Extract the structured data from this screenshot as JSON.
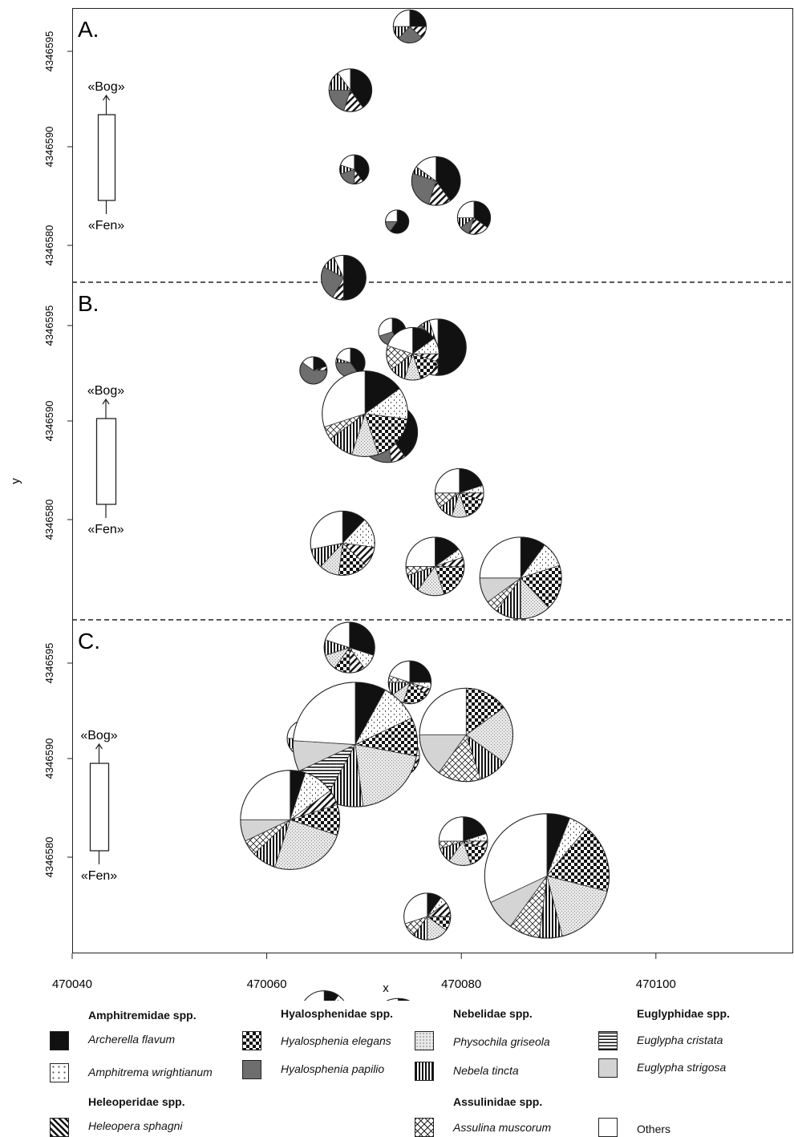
{
  "chart_data": {
    "type": "pie",
    "xlabel": "x",
    "ylabel": "y",
    "x_ticks": [
      "470040",
      "470060",
      "470080",
      "470100"
    ],
    "y_ticks": [
      "4346580",
      "4346590",
      "4346595"
    ],
    "xlim": [
      470040,
      470115
    ],
    "gradient": {
      "top": "«Bog»",
      "bottom": "«Fen»"
    },
    "categories": [
      "Archerella flavum",
      "Amphitrema wrightianum",
      "Heleopera sphagni",
      "Hyalosphenia elegans",
      "Hyalosphenia papilio",
      "Physochila griseola",
      "Nebela tincta",
      "Assulina muscorum",
      "Euglypha cristata",
      "Euglypha strigosa",
      "Others"
    ],
    "panels": [
      {
        "label": "A.",
        "pies": [
          {
            "cx": 470074.7,
            "cy": 4346598.5,
            "r": 1.7,
            "values": [
              25,
              0,
              12,
              0,
              25,
              0,
              13,
              0,
              0,
              0,
              25
            ]
          },
          {
            "cx": 470068.6,
            "cy": 4346595.2,
            "r": 2.2,
            "values": [
              40,
              0,
              15,
              0,
              20,
              0,
              15,
              0,
              0,
              0,
              10
            ]
          },
          {
            "cx": 470069.0,
            "cy": 4346591.1,
            "r": 1.5,
            "values": [
              40,
              0,
              10,
              0,
              20,
              0,
              10,
              0,
              0,
              0,
              20
            ]
          },
          {
            "cx": 470077.4,
            "cy": 4346590.5,
            "r": 2.5,
            "values": [
              40,
              0,
              15,
              0,
              25,
              0,
              5,
              0,
              0,
              0,
              15
            ]
          },
          {
            "cx": 470081.3,
            "cy": 4346588.6,
            "r": 1.7,
            "values": [
              35,
              0,
              20,
              0,
              10,
              0,
              10,
              0,
              0,
              0,
              25
            ]
          },
          {
            "cx": 470073.4,
            "cy": 4346588.4,
            "r": 1.2,
            "values": [
              60,
              0,
              0,
              0,
              15,
              0,
              0,
              0,
              0,
              0,
              25
            ]
          },
          {
            "cx": 470067.9,
            "cy": 4346585.5,
            "r": 2.3,
            "values": [
              50,
              0,
              8,
              0,
              25,
              0,
              10,
              0,
              0,
              0,
              7
            ]
          },
          {
            "cx": 470072.9,
            "cy": 4346582.7,
            "r": 1.4,
            "values": [
              40,
              0,
              0,
              0,
              30,
              0,
              0,
              0,
              0,
              0,
              30
            ]
          },
          {
            "cx": 470077.6,
            "cy": 4346581.9,
            "r": 2.9,
            "values": [
              50,
              0,
              10,
              0,
              30,
              0,
              5,
              0,
              0,
              0,
              5
            ]
          },
          {
            "cx": 470068.6,
            "cy": 4346581.1,
            "r": 1.5,
            "values": [
              40,
              0,
              0,
              0,
              35,
              0,
              5,
              0,
              0,
              0,
              20
            ]
          },
          {
            "cx": 470064.8,
            "cy": 4346580.7,
            "r": 1.4,
            "values": [
              20,
              0,
              5,
              0,
              60,
              0,
              0,
              0,
              0,
              0,
              15
            ]
          },
          {
            "cx": 470072.4,
            "cy": 4346577.5,
            "r": 3.1,
            "values": [
              40,
              0,
              8,
              0,
              45,
              0,
              0,
              0,
              0,
              0,
              7
            ]
          }
        ]
      },
      {
        "label": "B.",
        "pies": [
          {
            "cx": 470075.0,
            "cy": 4346595.8,
            "r": 2.7,
            "values": [
              15,
              10,
              5,
              15,
              0,
              10,
              10,
              15,
              0,
              0,
              20
            ]
          },
          {
            "cx": 470070.1,
            "cy": 4346592.7,
            "r": 4.4,
            "values": [
              15,
              12,
              0,
              18,
              0,
              10,
              10,
              5,
              0,
              0,
              30
            ]
          },
          {
            "cx": 470079.8,
            "cy": 4346588.6,
            "r": 2.5,
            "values": [
              20,
              5,
              5,
              15,
              0,
              10,
              10,
              10,
              0,
              0,
              25
            ]
          },
          {
            "cx": 470067.8,
            "cy": 4346586.0,
            "r": 3.3,
            "values": [
              12,
              15,
              10,
              15,
              0,
              10,
              10,
              0,
              0,
              0,
              28
            ]
          },
          {
            "cx": 470077.3,
            "cy": 4346584.8,
            "r": 3.0,
            "values": [
              15,
              5,
              5,
              20,
              0,
              15,
              10,
              5,
              0,
              0,
              25
            ]
          },
          {
            "cx": 470086.1,
            "cy": 4346584.2,
            "r": 4.2,
            "values": [
              10,
              10,
              0,
              18,
              0,
              12,
              10,
              5,
              0,
              10,
              25
            ]
          },
          {
            "cx": 470068.5,
            "cy": 4346580.6,
            "r": 2.6,
            "values": [
              30,
              10,
              10,
              10,
              0,
              10,
              10,
              0,
              0,
              0,
              20
            ]
          },
          {
            "cx": 470074.7,
            "cy": 4346578.8,
            "r": 2.2,
            "values": [
              25,
              5,
              5,
              20,
              0,
              10,
              10,
              5,
              0,
              0,
              20
            ]
          },
          {
            "cx": 470068.8,
            "cy": 4346576.9,
            "r": 2.1,
            "values": [
              20,
              5,
              5,
              25,
              0,
              10,
              10,
              0,
              0,
              0,
              25
            ]
          },
          {
            "cx": 470064.0,
            "cy": 4346575.9,
            "r": 1.9,
            "values": [
              20,
              5,
              5,
              20,
              0,
              15,
              10,
              0,
              0,
              0,
              25
            ]
          },
          {
            "cx": 470079.2,
            "cy": 4346576.7,
            "r": 2.0,
            "values": [
              20,
              5,
              5,
              20,
              0,
              15,
              10,
              0,
              0,
              0,
              25
            ]
          },
          {
            "cx": 470073.5,
            "cy": 4346575.0,
            "r": 2.2,
            "values": [
              20,
              5,
              5,
              25,
              0,
              15,
              10,
              0,
              0,
              0,
              20
            ]
          }
        ]
      },
      {
        "label": "C.",
        "pies": [
          {
            "cx": 470069.1,
            "cy": 4346593.1,
            "r": 6.4,
            "values": [
              8,
              10,
              0,
              10,
              0,
              20,
              10,
              0,
              10,
              8,
              24
            ]
          },
          {
            "cx": 470080.5,
            "cy": 4346593.6,
            "r": 4.8,
            "values": [
              0,
              0,
              0,
              15,
              0,
              20,
              10,
              15,
              0,
              15,
              25
            ]
          },
          {
            "cx": 470062.4,
            "cy": 4346589.2,
            "r": 5.1,
            "values": [
              5,
              10,
              5,
              10,
              0,
              25,
              8,
              5,
              0,
              7,
              25
            ]
          },
          {
            "cx": 470080.2,
            "cy": 4346588.1,
            "r": 2.5,
            "values": [
              20,
              5,
              5,
              15,
              0,
              15,
              10,
              5,
              0,
              0,
              25
            ]
          },
          {
            "cx": 470088.8,
            "cy": 4346586.3,
            "r": 6.4,
            "values": [
              6,
              5,
              0,
              18,
              0,
              17,
              6,
              8,
              0,
              8,
              32
            ]
          },
          {
            "cx": 470076.5,
            "cy": 4346584.2,
            "r": 2.4,
            "values": [
              10,
              5,
              10,
              10,
              0,
              15,
              10,
              10,
              0,
              0,
              30
            ]
          },
          {
            "cx": 470073.5,
            "cy": 4346578.5,
            "r": 2.9,
            "values": [
              10,
              8,
              5,
              10,
              0,
              20,
              5,
              0,
              8,
              7,
              27
            ]
          },
          {
            "cx": 470065.9,
            "cy": 4346579.1,
            "r": 2.5,
            "values": [
              10,
              5,
              5,
              15,
              0,
              15,
              5,
              0,
              0,
              0,
              45
            ]
          },
          {
            "cx": 470080.1,
            "cy": 4346574.6,
            "r": 2.4,
            "values": [
              15,
              10,
              5,
              15,
              0,
              15,
              10,
              0,
              0,
              0,
              30
            ]
          },
          {
            "cx": 470067.8,
            "cy": 4346574.3,
            "r": 2.0,
            "values": [
              15,
              10,
              5,
              10,
              0,
              15,
              5,
              0,
              0,
              0,
              40
            ]
          },
          {
            "cx": 470064.1,
            "cy": 4346571.7,
            "r": 2.1,
            "values": [
              15,
              5,
              5,
              20,
              0,
              20,
              5,
              0,
              0,
              0,
              30
            ]
          },
          {
            "cx": 470073.8,
            "cy": 4346571.5,
            "r": 2.4,
            "values": [
              10,
              5,
              5,
              15,
              0,
              25,
              5,
              0,
              5,
              0,
              30
            ]
          }
        ]
      }
    ]
  },
  "legend": {
    "groups": [
      {
        "name": "Amphitremidae spp.",
        "items": [
          {
            "label": "Archerella flavum",
            "pattern": "archerella"
          },
          {
            "label": "Amphitrema wrightianum",
            "pattern": "amphitrema"
          }
        ]
      },
      {
        "name": "Heleoperidae spp.",
        "items": [
          {
            "label": "Heleopera sphagni",
            "pattern": "heleopera"
          }
        ]
      },
      {
        "name": "Hyalosphenidae spp.",
        "items": [
          {
            "label": "Hyalosphenia elegans",
            "pattern": "elegans"
          },
          {
            "label": "Hyalosphenia papilio",
            "pattern": "papilio"
          }
        ]
      },
      {
        "name": "Nebelidae spp.",
        "items": [
          {
            "label": "Physochila griseola",
            "pattern": "physochila"
          },
          {
            "label": "Nebela tincta",
            "pattern": "nebela"
          }
        ]
      },
      {
        "name": "Assulinidae spp.",
        "items": [
          {
            "label": "Assulina muscorum",
            "pattern": "assulina"
          }
        ]
      },
      {
        "name": "Euglyphidae spp.",
        "items": [
          {
            "label": "Euglypha cristata",
            "pattern": "cristata"
          },
          {
            "label": "Euglypha strigosa",
            "pattern": "strigosa"
          }
        ]
      },
      {
        "name": "",
        "items": [
          {
            "label": "Others",
            "pattern": "others"
          }
        ]
      }
    ]
  }
}
